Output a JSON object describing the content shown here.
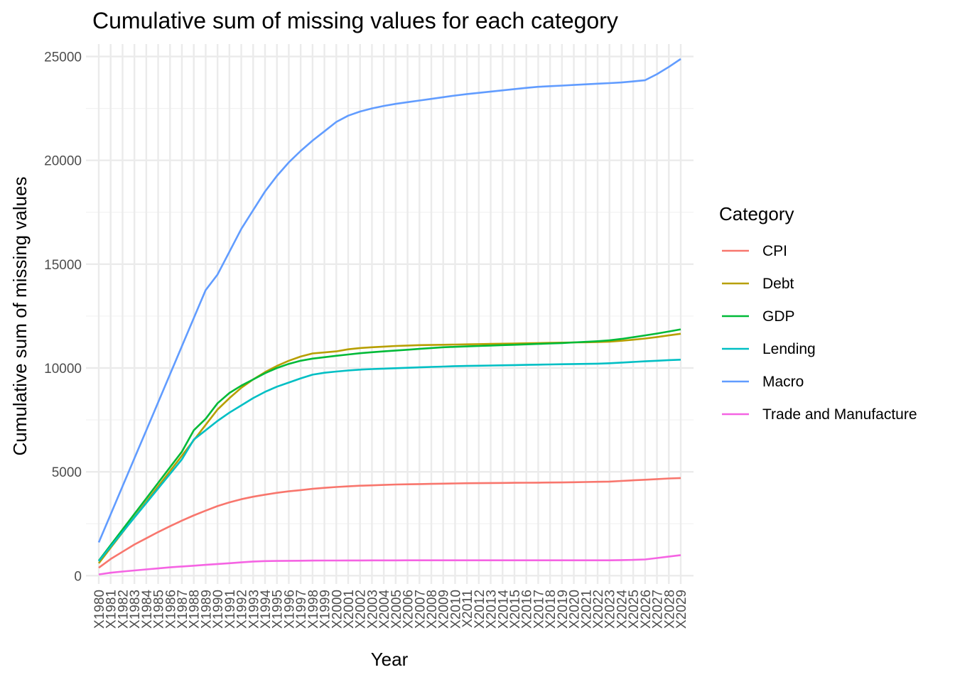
{
  "chart_data": {
    "type": "line",
    "title": "Cumulative sum of missing values for each category",
    "xlabel": "Year",
    "ylabel": "Cumulative sum of missing values",
    "ylim": [
      -400,
      25600
    ],
    "yticks": [
      0,
      5000,
      10000,
      15000,
      20000,
      25000
    ],
    "grid": true,
    "legend_title": "Category",
    "legend_position": "right",
    "categories": [
      "X1980",
      "X1981",
      "X1982",
      "X1983",
      "X1984",
      "X1985",
      "X1986",
      "X1987",
      "X1988",
      "X1989",
      "X1990",
      "X1991",
      "X1992",
      "X1993",
      "X1994",
      "X1995",
      "X1996",
      "X1997",
      "X1998",
      "X1999",
      "X2000",
      "X2001",
      "X2002",
      "X2003",
      "X2004",
      "X2005",
      "X2006",
      "X2007",
      "X2008",
      "X2009",
      "X2010",
      "X2011",
      "X2012",
      "X2013",
      "X2014",
      "X2015",
      "X2016",
      "X2017",
      "X2018",
      "X2019",
      "X2020",
      "X2021",
      "X2022",
      "X2023",
      "X2024",
      "X2025",
      "X2026",
      "X2027",
      "X2028",
      "X2029"
    ],
    "series": [
      {
        "name": "CPI",
        "color": "#F8766D",
        "values": [
          380,
          800,
          1150,
          1500,
          1800,
          2100,
          2380,
          2650,
          2900,
          3130,
          3350,
          3530,
          3680,
          3800,
          3900,
          3990,
          4060,
          4120,
          4180,
          4230,
          4270,
          4300,
          4330,
          4350,
          4370,
          4390,
          4400,
          4410,
          4420,
          4430,
          4440,
          4450,
          4455,
          4460,
          4465,
          4470,
          4475,
          4480,
          4485,
          4490,
          4500,
          4510,
          4520,
          4530,
          4560,
          4590,
          4620,
          4650,
          4680,
          4700
        ]
      },
      {
        "name": "Debt",
        "color": "#B79F00",
        "values": [
          600,
          1340,
          2080,
          2820,
          3560,
          4300,
          5040,
          5780,
          6520,
          7260,
          8000,
          8550,
          9050,
          9450,
          9800,
          10100,
          10350,
          10550,
          10700,
          10750,
          10800,
          10900,
          10960,
          11000,
          11030,
          11060,
          11080,
          11100,
          11110,
          11120,
          11130,
          11140,
          11150,
          11160,
          11170,
          11180,
          11190,
          11200,
          11210,
          11220,
          11230,
          11240,
          11250,
          11270,
          11310,
          11360,
          11420,
          11490,
          11570,
          11650
        ]
      },
      {
        "name": "GDP",
        "color": "#00BA38",
        "values": [
          720,
          1470,
          2220,
          2970,
          3720,
          4470,
          5220,
          5970,
          7000,
          7550,
          8300,
          8800,
          9150,
          9450,
          9750,
          10000,
          10200,
          10350,
          10450,
          10520,
          10590,
          10650,
          10710,
          10760,
          10800,
          10840,
          10880,
          10920,
          10960,
          11000,
          11020,
          11040,
          11060,
          11080,
          11100,
          11120,
          11140,
          11160,
          11180,
          11200,
          11230,
          11260,
          11290,
          11330,
          11400,
          11480,
          11570,
          11660,
          11760,
          11860
        ]
      },
      {
        "name": "Lending",
        "color": "#00BFC4",
        "values": [
          700,
          1400,
          2100,
          2800,
          3500,
          4200,
          4900,
          5600,
          6550,
          7000,
          7450,
          7850,
          8200,
          8550,
          8850,
          9100,
          9300,
          9500,
          9680,
          9770,
          9830,
          9880,
          9920,
          9950,
          9970,
          9990,
          10010,
          10030,
          10050,
          10070,
          10090,
          10100,
          10110,
          10120,
          10130,
          10140,
          10150,
          10160,
          10170,
          10180,
          10190,
          10200,
          10210,
          10230,
          10260,
          10290,
          10320,
          10350,
          10380,
          10400
        ]
      },
      {
        "name": "Macro",
        "color": "#619CFF",
        "values": [
          1600,
          2950,
          4300,
          5650,
          7000,
          8350,
          9700,
          11050,
          12400,
          13750,
          14500,
          15600,
          16700,
          17600,
          18500,
          19250,
          19900,
          20450,
          20950,
          21400,
          21850,
          22150,
          22350,
          22500,
          22620,
          22720,
          22800,
          22880,
          22960,
          23040,
          23120,
          23190,
          23250,
          23310,
          23370,
          23430,
          23490,
          23540,
          23570,
          23600,
          23630,
          23660,
          23690,
          23720,
          23750,
          23800,
          23860,
          24150,
          24500,
          24880
        ]
      },
      {
        "name": "Trade and Manufacture",
        "color": "#F564E3",
        "values": [
          60,
          140,
          200,
          250,
          300,
          350,
          400,
          440,
          480,
          520,
          560,
          600,
          640,
          680,
          700,
          710,
          715,
          720,
          725,
          728,
          730,
          732,
          734,
          735,
          736,
          737,
          738,
          739,
          740,
          740,
          740,
          740,
          740,
          740,
          740,
          740,
          740,
          740,
          740,
          740,
          740,
          740,
          740,
          740,
          750,
          760,
          780,
          850,
          920,
          990
        ]
      }
    ]
  }
}
